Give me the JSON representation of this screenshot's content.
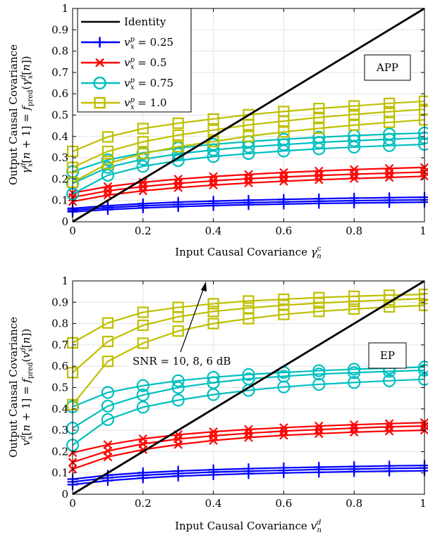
{
  "colors": {
    "identity": "#000000",
    "v025": "#0000ff",
    "v05": "#ff0000",
    "v075": "#00bfbf",
    "v1": "#bfbf00",
    "grid": "#e3e3e3",
    "axes": "#000000"
  },
  "chart_data": [
    {
      "type": "line",
      "panel_label": "APP",
      "xlabel": "Input Causal Covariance γ_n^c",
      "ylabel": "Output Causal Covariance γ_x^d[n+1] = f_pred(γ_x^d[n])",
      "xlim": [
        0,
        1
      ],
      "ylim": [
        0,
        1
      ],
      "grid": true,
      "legend_position": "top-left",
      "x_ticks": [
        "0",
        "0.2",
        "0.4",
        "0.6",
        "0.8",
        "1"
      ],
      "y_ticks": [
        "0",
        "0.1",
        "0.2",
        "0.3",
        "0.4",
        "0.5",
        "0.6",
        "0.7",
        "0.8",
        "0.9",
        "1"
      ],
      "legend": [
        {
          "label": "Identity"
        },
        {
          "label": "v_x^p = 0.25"
        },
        {
          "label": "v_x^p = 0.5"
        },
        {
          "label": "v_x^p = 0.75"
        },
        {
          "label": "v_x^p = 1.0"
        }
      ],
      "x": [
        0,
        0.1,
        0.2,
        0.3,
        0.4,
        0.5,
        0.6,
        0.7,
        0.8,
        0.9,
        1.0
      ],
      "series": [
        {
          "name": "Identity",
          "group": "identity",
          "marker": "none",
          "x": [
            0,
            1
          ],
          "values": [
            0,
            1
          ]
        },
        {
          "name": "v_x^p = 0.25",
          "group": "v025",
          "marker": "plus",
          "values": [
            0.063,
            0.075,
            0.085,
            0.092,
            0.097,
            0.101,
            0.105,
            0.108,
            0.111,
            0.113,
            0.115
          ]
        },
        {
          "group": "v025",
          "marker": "plus",
          "values": [
            0.055,
            0.066,
            0.075,
            0.081,
            0.086,
            0.09,
            0.093,
            0.096,
            0.099,
            0.101,
            0.103
          ]
        },
        {
          "group": "v025",
          "marker": "plus",
          "values": [
            0.047,
            0.057,
            0.065,
            0.071,
            0.076,
            0.08,
            0.083,
            0.086,
            0.088,
            0.09,
            0.092
          ]
        },
        {
          "name": "v_x^p = 0.5",
          "group": "v05",
          "marker": "x",
          "values": [
            0.135,
            0.165,
            0.185,
            0.2,
            0.212,
            0.222,
            0.231,
            0.238,
            0.245,
            0.25,
            0.255
          ]
        },
        {
          "group": "v05",
          "marker": "x",
          "values": [
            0.115,
            0.145,
            0.165,
            0.18,
            0.192,
            0.202,
            0.21,
            0.217,
            0.223,
            0.228,
            0.233
          ]
        },
        {
          "group": "v05",
          "marker": "x",
          "values": [
            0.095,
            0.125,
            0.145,
            0.16,
            0.172,
            0.182,
            0.19,
            0.197,
            0.203,
            0.208,
            0.213
          ]
        },
        {
          "name": "v_x^p = 0.75",
          "group": "v075",
          "marker": "circle",
          "values": [
            0.235,
            0.29,
            0.323,
            0.346,
            0.363,
            0.376,
            0.387,
            0.396,
            0.404,
            0.411,
            0.416
          ]
        },
        {
          "group": "v075",
          "marker": "circle",
          "values": [
            0.18,
            0.255,
            0.293,
            0.318,
            0.337,
            0.351,
            0.362,
            0.372,
            0.38,
            0.387,
            0.393
          ]
        },
        {
          "group": "v075",
          "marker": "circle",
          "values": [
            0.13,
            0.218,
            0.26,
            0.287,
            0.306,
            0.32,
            0.332,
            0.342,
            0.35,
            0.357,
            0.363
          ]
        },
        {
          "name": "v_x^p = 1.0",
          "group": "v1",
          "marker": "square",
          "values": [
            0.33,
            0.398,
            0.437,
            0.462,
            0.482,
            0.502,
            0.517,
            0.531,
            0.543,
            0.555,
            0.565
          ]
        },
        {
          "group": "v1",
          "marker": "square",
          "values": [
            0.255,
            0.33,
            0.375,
            0.406,
            0.43,
            0.454,
            0.472,
            0.489,
            0.503,
            0.516,
            0.527
          ]
        },
        {
          "group": "v1",
          "marker": "square",
          "values": [
            0.185,
            0.273,
            0.32,
            0.352,
            0.376,
            0.401,
            0.421,
            0.438,
            0.453,
            0.466,
            0.478
          ]
        }
      ]
    },
    {
      "type": "line",
      "panel_label": "EP",
      "annotation": "SNR = 10, 8, 6 dB",
      "xlabel": "Input Causal Covariance v_n^d",
      "ylabel": "Output Causal Covariance v_x^d[n+1] = f_pred(v_x^d[n])",
      "xlim": [
        0,
        1
      ],
      "ylim": [
        0,
        1
      ],
      "grid": true,
      "x_ticks": [
        "0",
        "0.2",
        "0.4",
        "0.6",
        "0.8",
        "1"
      ],
      "y_ticks": [
        "0",
        "0.1",
        "0.2",
        "0.3",
        "0.4",
        "0.5",
        "0.6",
        "0.7",
        "0.8",
        "0.9",
        "1"
      ],
      "x": [
        0,
        0.1,
        0.2,
        0.3,
        0.4,
        0.5,
        0.6,
        0.7,
        0.8,
        0.9,
        1.0
      ],
      "series": [
        {
          "group": "identity",
          "marker": "none",
          "x": [
            0,
            1
          ],
          "values": [
            0,
            1
          ]
        },
        {
          "group": "v025",
          "marker": "plus",
          "values": [
            0.071,
            0.089,
            0.101,
            0.109,
            0.115,
            0.12,
            0.124,
            0.127,
            0.13,
            0.133,
            0.135
          ]
        },
        {
          "group": "v025",
          "marker": "plus",
          "values": [
            0.058,
            0.077,
            0.089,
            0.097,
            0.104,
            0.108,
            0.112,
            0.116,
            0.118,
            0.121,
            0.123
          ]
        },
        {
          "group": "v025",
          "marker": "plus",
          "values": [
            0.045,
            0.064,
            0.076,
            0.085,
            0.091,
            0.096,
            0.1,
            0.103,
            0.106,
            0.108,
            0.11
          ]
        },
        {
          "group": "v05",
          "marker": "x",
          "values": [
            0.195,
            0.232,
            0.26,
            0.279,
            0.293,
            0.304,
            0.312,
            0.32,
            0.326,
            0.331,
            0.336
          ]
        },
        {
          "group": "v05",
          "marker": "x",
          "values": [
            0.15,
            0.203,
            0.236,
            0.259,
            0.274,
            0.286,
            0.296,
            0.303,
            0.31,
            0.316,
            0.32
          ]
        },
        {
          "group": "v05",
          "marker": "x",
          "values": [
            0.118,
            0.175,
            0.209,
            0.233,
            0.252,
            0.266,
            0.276,
            0.284,
            0.291,
            0.296,
            0.3
          ]
        },
        {
          "group": "v075",
          "marker": "circle",
          "values": [
            0.41,
            0.477,
            0.509,
            0.532,
            0.548,
            0.561,
            0.571,
            0.579,
            0.586,
            0.591,
            0.596
          ]
        },
        {
          "group": "v075",
          "marker": "circle",
          "values": [
            0.31,
            0.413,
            0.465,
            0.5,
            0.523,
            0.541,
            0.553,
            0.563,
            0.57,
            0.576,
            0.581
          ]
        },
        {
          "group": "v075",
          "marker": "circle",
          "values": [
            0.23,
            0.35,
            0.408,
            0.441,
            0.467,
            0.487,
            0.503,
            0.515,
            0.524,
            0.532,
            0.539
          ]
        },
        {
          "group": "v1",
          "marker": "square",
          "values": [
            0.71,
            0.803,
            0.853,
            0.876,
            0.893,
            0.906,
            0.914,
            0.922,
            0.928,
            0.933,
            0.937
          ]
        },
        {
          "group": "v1",
          "marker": "square",
          "values": [
            0.57,
            0.716,
            0.792,
            0.832,
            0.857,
            0.873,
            0.886,
            0.896,
            0.904,
            0.911,
            0.917
          ]
        },
        {
          "group": "v1",
          "marker": "square",
          "values": [
            0.42,
            0.623,
            0.708,
            0.765,
            0.8,
            0.823,
            0.843,
            0.857,
            0.868,
            0.878,
            0.885
          ]
        }
      ]
    }
  ]
}
